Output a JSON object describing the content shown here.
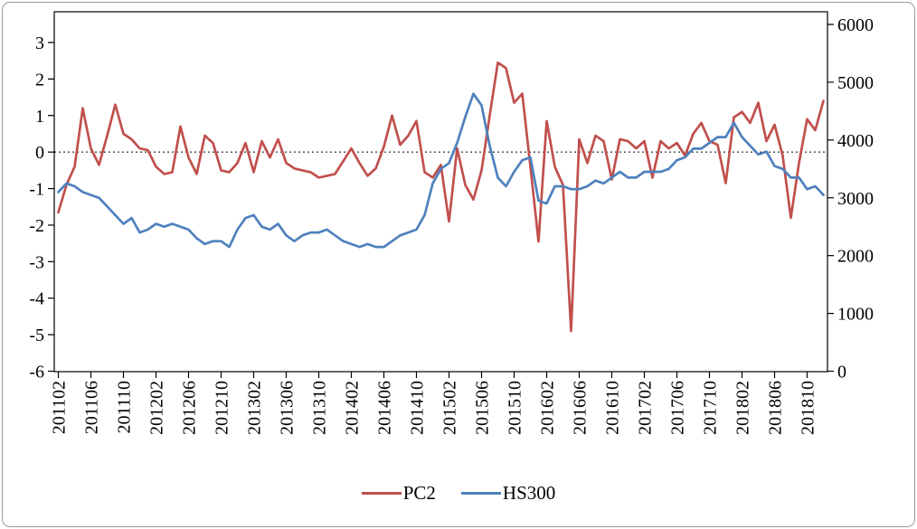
{
  "chart_data": {
    "type": "line",
    "title": "",
    "xlabel": "",
    "ylabel_left": "",
    "ylabel_right": "",
    "grid": "dotted zero line on left axis only",
    "legend_position": "bottom",
    "x_tick_every": 4,
    "x": [
      "201102",
      "201103",
      "201104",
      "201105",
      "201106",
      "201107",
      "201108",
      "201109",
      "201110",
      "201111",
      "201112",
      "201201",
      "201202",
      "201203",
      "201204",
      "201205",
      "201206",
      "201207",
      "201208",
      "201209",
      "201210",
      "201211",
      "201212",
      "201301",
      "201302",
      "201303",
      "201304",
      "201305",
      "201306",
      "201307",
      "201308",
      "201309",
      "201310",
      "201311",
      "201312",
      "201401",
      "201402",
      "201403",
      "201404",
      "201405",
      "201406",
      "201407",
      "201408",
      "201409",
      "201410",
      "201411",
      "201412",
      "201501",
      "201502",
      "201503",
      "201504",
      "201505",
      "201506",
      "201507",
      "201508",
      "201509",
      "201510",
      "201511",
      "201512",
      "201601",
      "201602",
      "201603",
      "201604",
      "201605",
      "201606",
      "201607",
      "201608",
      "201609",
      "201610",
      "201611",
      "201612",
      "201701",
      "201702",
      "201703",
      "201704",
      "201705",
      "201706",
      "201707",
      "201708",
      "201709",
      "201710",
      "201711",
      "201712",
      "201801",
      "201802",
      "201803",
      "201804",
      "201805",
      "201806",
      "201807",
      "201808",
      "201809",
      "201810",
      "201811",
      "201812"
    ],
    "left_axis": {
      "min": -6,
      "max": 3,
      "ticks": [
        3,
        2,
        1,
        0,
        -1,
        -2,
        -3,
        -4,
        -5,
        -6
      ]
    },
    "right_axis": {
      "min": 0,
      "max": 6000,
      "ticks": [
        6000,
        5000,
        4000,
        3000,
        2000,
        1000,
        0
      ]
    },
    "series": [
      {
        "name": "PC2",
        "axis": "left",
        "color": "#C0504D",
        "values": [
          -1.65,
          -0.9,
          -0.4,
          1.2,
          0.1,
          -0.35,
          0.45,
          1.3,
          0.5,
          0.35,
          0.1,
          0.05,
          -0.4,
          -0.6,
          -0.55,
          0.7,
          -0.15,
          -0.6,
          0.45,
          0.25,
          -0.5,
          -0.55,
          -0.3,
          0.25,
          -0.55,
          0.3,
          -0.15,
          0.35,
          -0.3,
          -0.45,
          -0.5,
          -0.55,
          -0.7,
          -0.65,
          -0.6,
          -0.25,
          0.1,
          -0.3,
          -0.65,
          -0.45,
          0.15,
          1.0,
          0.2,
          0.45,
          0.85,
          -0.55,
          -0.7,
          -0.35,
          -1.9,
          0.1,
          -0.9,
          -1.3,
          -0.5,
          1.0,
          2.45,
          2.3,
          1.35,
          1.6,
          -0.4,
          -2.45,
          0.85,
          -0.4,
          -0.9,
          -4.9,
          0.35,
          -0.3,
          0.45,
          0.3,
          -0.75,
          0.35,
          0.3,
          0.1,
          0.3,
          -0.7,
          0.3,
          0.1,
          0.25,
          -0.1,
          0.5,
          0.8,
          0.3,
          0.2,
          -0.85,
          0.95,
          1.1,
          0.8,
          1.35,
          0.3,
          0.75,
          -0.1,
          -1.8,
          -0.3,
          0.9,
          0.6,
          1.4
        ]
      },
      {
        "name": "HS300",
        "axis": "right",
        "color": "#4F81BD",
        "values": [
          3100,
          3250,
          3200,
          3100,
          3050,
          3000,
          2850,
          2700,
          2550,
          2650,
          2400,
          2450,
          2550,
          2500,
          2550,
          2500,
          2450,
          2300,
          2200,
          2250,
          2250,
          2150,
          2450,
          2650,
          2700,
          2500,
          2450,
          2550,
          2350,
          2250,
          2350,
          2400,
          2400,
          2450,
          2350,
          2250,
          2200,
          2150,
          2200,
          2150,
          2150,
          2250,
          2350,
          2400,
          2450,
          2700,
          3250,
          3500,
          3600,
          3950,
          4400,
          4800,
          4600,
          3900,
          3350,
          3200,
          3450,
          3650,
          3700,
          2950,
          2900,
          3200,
          3200,
          3150,
          3150,
          3200,
          3300,
          3250,
          3350,
          3450,
          3350,
          3350,
          3450,
          3450,
          3450,
          3500,
          3650,
          3700,
          3850,
          3850,
          3950,
          4050,
          4050,
          4300,
          4050,
          3900,
          3750,
          3800,
          3550,
          3500,
          3350,
          3350,
          3150,
          3200,
          3050
        ]
      }
    ]
  },
  "legend": {
    "pc2_label": "PC2",
    "hs300_label": "HS300"
  }
}
